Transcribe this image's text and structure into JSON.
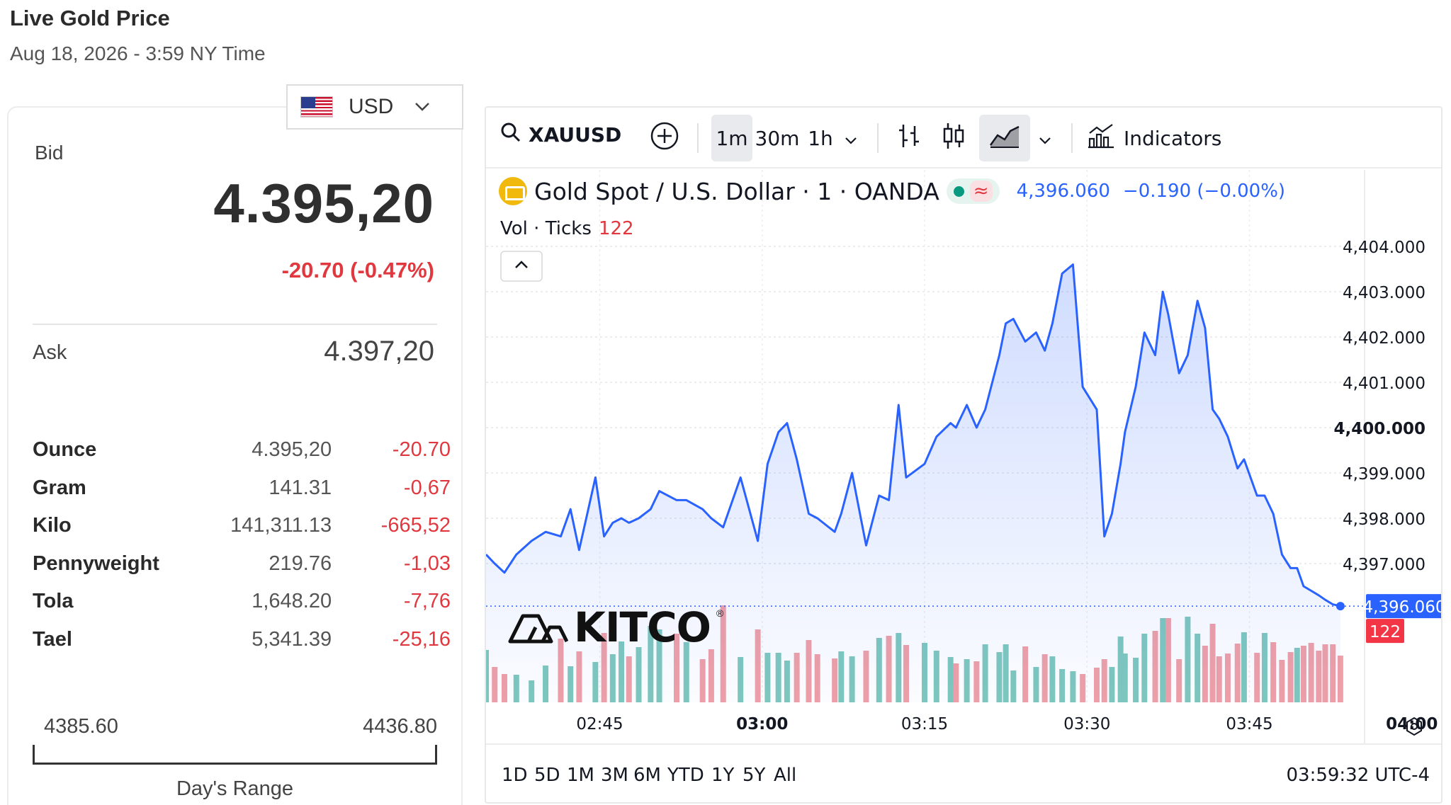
{
  "header": {
    "title": "Live Gold Price",
    "subtitle": "Aug 18, 2026 - 3:59 NY Time"
  },
  "currency": {
    "label": "USD",
    "flag_icon": "us-flag-icon"
  },
  "quote": {
    "bid_label": "Bid",
    "bid_price": "4.395,20",
    "bid_change": "-20.70 (-0.47%)",
    "ask_label": "Ask",
    "ask_price": "4.397,20",
    "change_color": "#e0383e"
  },
  "units": [
    {
      "name": "Ounce",
      "price": "4.395,20",
      "change": "-20.70"
    },
    {
      "name": "Gram",
      "price": "141.31",
      "change": "-0,67"
    },
    {
      "name": "Kilo",
      "price": "141,311.13",
      "change": "-665,52"
    },
    {
      "name": "Pennyweight",
      "price": "219.76",
      "change": "-1,03"
    },
    {
      "name": "Tola",
      "price": "1,648.20",
      "change": "-7,76"
    },
    {
      "name": "Tael",
      "price": "5,341.39",
      "change": "-25,16"
    }
  ],
  "day_range": {
    "low": "4385.60",
    "high": "4436.80",
    "caption": "Day's Range"
  },
  "toolbar": {
    "symbol": "XAUUSD",
    "intervals": [
      "1m",
      "30m",
      "1h"
    ],
    "active_interval": "1m",
    "indicators_label": "Indicators"
  },
  "legend": {
    "description": "Gold Spot / U.S. Dollar · 1 · OANDA",
    "price": "4,396.060",
    "change": "−0.190 (−0.00%)",
    "vol_label": "Vol · Ticks",
    "vol_value": "122"
  },
  "watermark": {
    "text": "KITCO",
    "mark": "®"
  },
  "range_buttons": [
    "1D",
    "5D",
    "1M",
    "3M",
    "6M",
    "YTD",
    "1Y",
    "5Y",
    "All"
  ],
  "clock": "03:59:32 UTC-4",
  "chart_data": {
    "type": "area",
    "title": "",
    "xlabel": "",
    "ylabel": "",
    "x_ticks": [
      "02:45",
      "03:00",
      "03:15",
      "03:30",
      "03:45",
      "04:00"
    ],
    "x_ticks_bold": [
      "03:00",
      "04:00"
    ],
    "y_ticks": [
      "4,404.000",
      "4,403.000",
      "4,402.000",
      "4,401.000",
      "4,400.000",
      "4,399.000",
      "4,398.000",
      "4,397.000"
    ],
    "y_tick_values": [
      4404,
      4403,
      4402,
      4401,
      4400,
      4399,
      4398,
      4397
    ],
    "ylim": [
      4395.2,
      4404.2
    ],
    "x_range_minutes": [
      34.5,
      115.5
    ],
    "line_color": "#2962ff",
    "last_price_label": "4,396.060",
    "last_volume_label": "122",
    "grid": true,
    "series": [
      {
        "values_x": [
          34.5,
          35.3,
          36.2,
          37.3,
          38.7,
          40.0,
          41.4,
          42.3,
          43.1,
          44.6,
          45.4,
          46.2,
          47.0,
          47.7,
          48.6,
          49.7,
          50.5,
          52.1,
          53.0,
          54.5,
          55.3,
          56.4,
          58.0,
          59.6,
          60.5,
          61.5,
          62.3,
          63.2,
          64.3,
          65.1,
          66.7,
          67.3,
          68.3,
          69.6,
          70.8,
          71.7,
          72.6,
          73.3,
          75.0,
          76.1,
          77.4,
          77.9,
          78.9,
          79.8,
          80.6,
          81.9,
          82.5,
          83.2,
          84.3,
          85.3,
          86.1,
          86.8,
          87.7,
          88.7,
          89.6,
          90.9,
          91.6,
          92.3,
          93.1,
          93.5,
          94.5,
          95.3,
          96.3,
          97.0,
          97.5,
          98.5,
          99.3,
          100.2,
          100.9,
          101.6,
          102.2,
          103.0,
          103.9,
          104.5,
          105.7,
          106.4,
          107.2,
          108.0,
          108.8,
          109.4,
          110.0,
          110.7,
          111.4,
          112.0,
          112.7,
          113.4
        ],
        "values": [
          4397.2,
          4397.0,
          4396.8,
          4397.2,
          4397.5,
          4397.7,
          4397.6,
          4398.2,
          4397.3,
          4398.9,
          4397.6,
          4397.9,
          4398.0,
          4397.9,
          4398.0,
          4398.2,
          4398.6,
          4398.4,
          4398.4,
          4398.2,
          4398.0,
          4397.8,
          4398.9,
          4397.5,
          4399.2,
          4399.9,
          4400.1,
          4399.3,
          4398.1,
          4398.0,
          4397.7,
          4398.1,
          4399.0,
          4397.4,
          4398.5,
          4398.4,
          4400.5,
          4398.9,
          4399.2,
          4399.8,
          4400.1,
          4400.0,
          4400.5,
          4400.0,
          4400.4,
          4401.6,
          4402.3,
          4402.4,
          4401.9,
          4402.1,
          4401.7,
          4402.3,
          4403.4,
          4403.6,
          4400.9,
          4400.4,
          4397.6,
          4398.1,
          4399.2,
          4399.9,
          4400.9,
          4402.1,
          4401.6,
          4403.0,
          4402.5,
          4401.2,
          4401.6,
          4402.8,
          4402.2,
          4400.4,
          4400.2,
          4399.8,
          4399.1,
          4399.3,
          4398.5,
          4398.5,
          4398.1,
          4397.2,
          4396.9,
          4396.9,
          4396.5,
          4396.4,
          4396.3,
          4396.2,
          4396.1,
          4396.06
        ]
      }
    ],
    "volume": {
      "values": [
        74,
        50,
        40,
        39,
        31,
        52,
        90,
        51,
        72,
        57,
        98,
        68,
        86,
        65,
        78,
        108,
        103,
        97,
        85,
        61,
        75,
        137,
        64,
        103,
        70,
        70,
        59,
        70,
        88,
        68,
        62,
        72,
        65,
        73,
        91,
        94,
        98,
        81,
        84,
        73,
        64,
        55,
        61,
        58,
        82,
        71,
        82,
        45,
        79,
        50,
        68,
        65,
        47,
        44,
        40,
        49,
        61,
        50,
        93,
        69,
        63,
        97,
        101,
        119,
        119,
        61,
        121,
        97,
        80,
        111,
        65,
        69,
        83,
        99,
        70,
        98,
        85,
        60,
        71,
        77,
        80,
        84,
        73,
        82,
        82,
        66
      ],
      "colors_up": "#7fc8bd",
      "colors_down": "#f0a0a6"
    }
  }
}
